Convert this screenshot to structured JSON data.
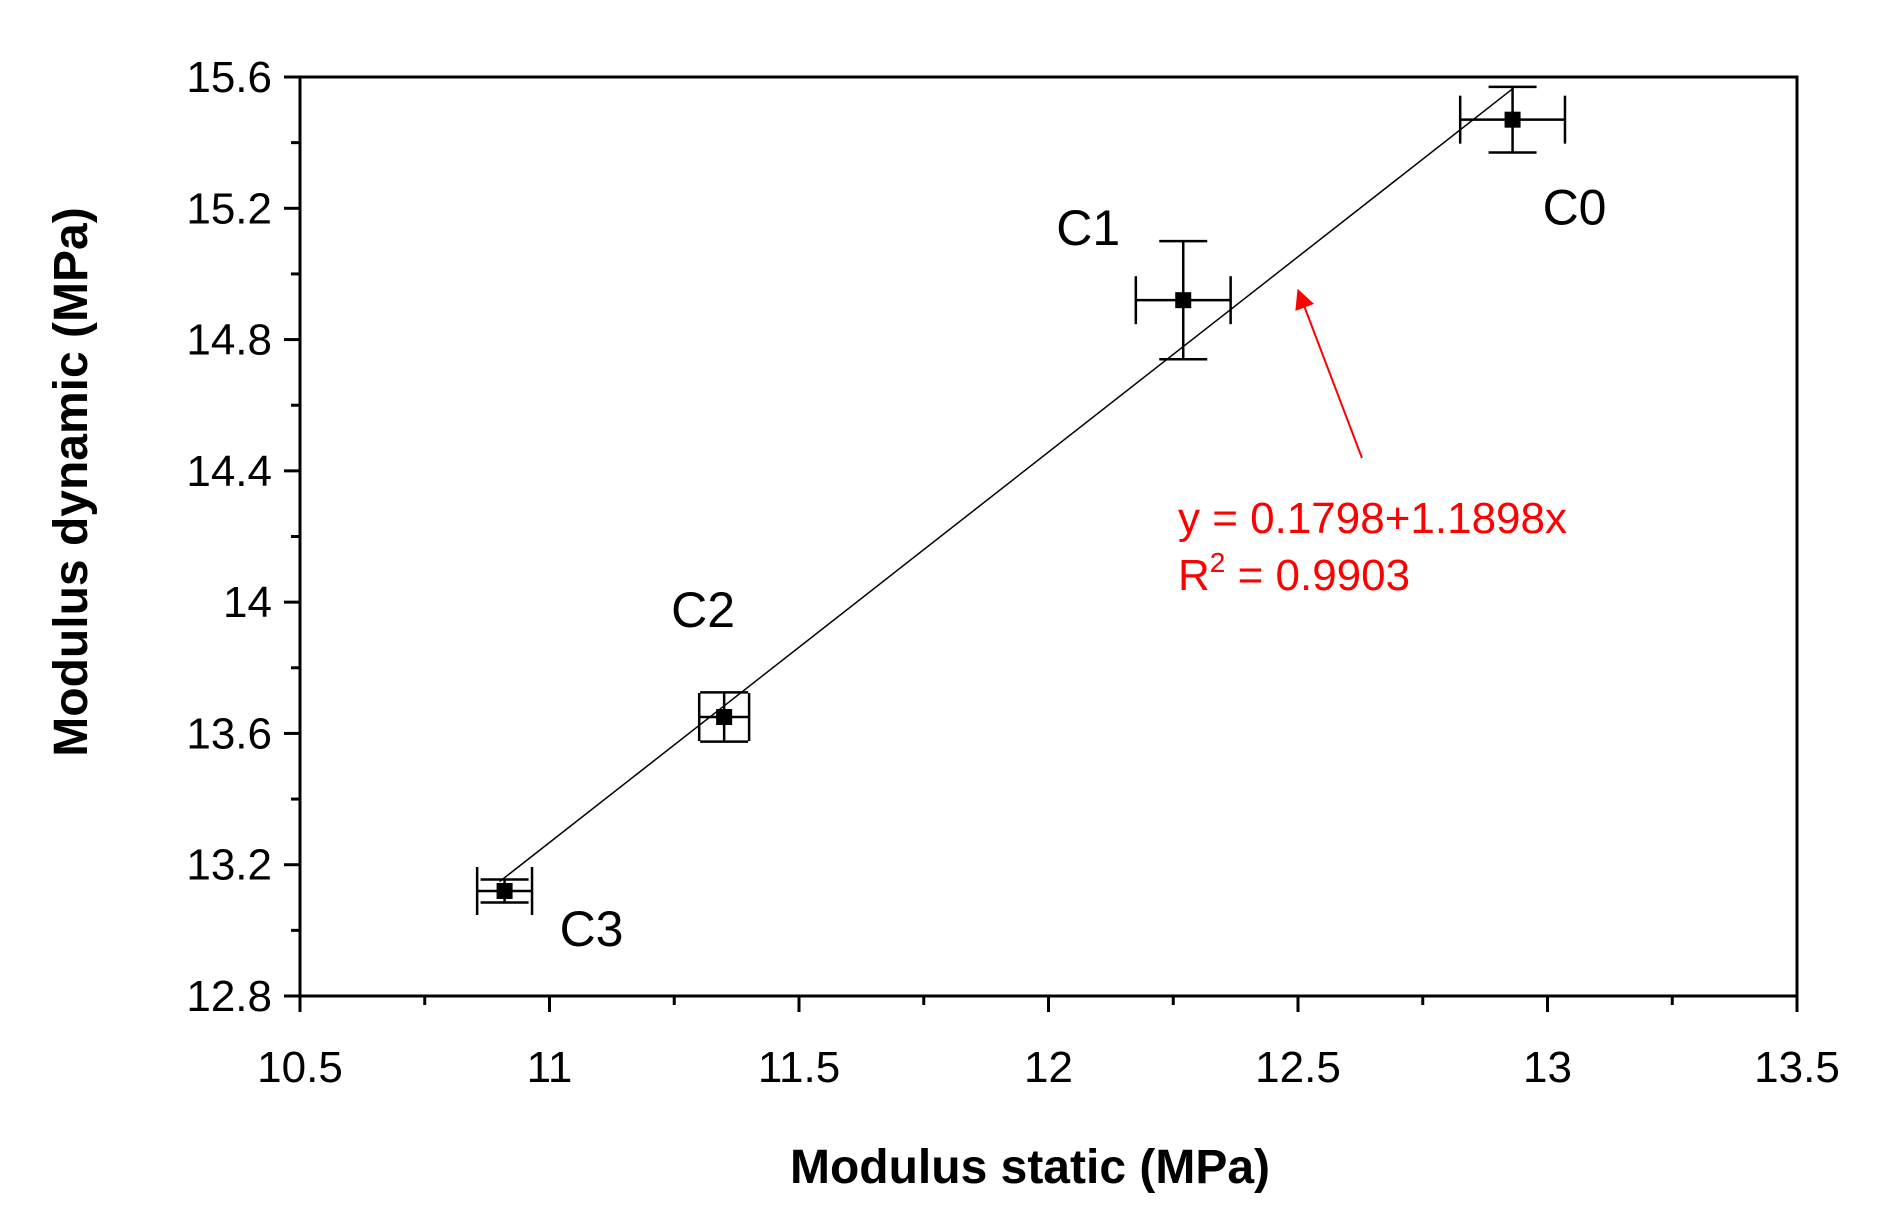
{
  "chart_data": {
    "type": "scatter",
    "xlabel": "Modulus static (MPa)",
    "ylabel": "Modulus dynamic (MPa)",
    "xlim": [
      10.5,
      13.5
    ],
    "ylim": [
      12.8,
      15.6
    ],
    "x_ticks": [
      "10.5",
      "11",
      "11.5",
      "12",
      "12.5",
      "13",
      "13.5"
    ],
    "x_tick_values": [
      10.5,
      11,
      11.5,
      12,
      12.5,
      13,
      13.5
    ],
    "y_ticks": [
      "12.8",
      "13.2",
      "13.6",
      "14",
      "14.4",
      "14.8",
      "15.2",
      "15.6"
    ],
    "y_tick_values": [
      12.8,
      13.2,
      13.6,
      14,
      14.4,
      14.8,
      15.2,
      15.6
    ],
    "grid": false,
    "points": [
      {
        "label": "C0",
        "x": 12.93,
        "y": 15.47,
        "xerr": 0.105,
        "yerr": 0.1
      },
      {
        "label": "C1",
        "x": 12.27,
        "y": 14.92,
        "xerr": 0.095,
        "yerr": 0.18
      },
      {
        "label": "C2",
        "x": 11.35,
        "y": 13.65,
        "xerr": 0.05,
        "yerr": 0.075
      },
      {
        "label": "C3",
        "x": 10.91,
        "y": 13.12,
        "xerr": 0.055,
        "yerr": 0.035
      }
    ],
    "fit_line": {
      "intercept": 0.1798,
      "slope": 1.1898,
      "x_range": [
        10.9,
        12.93
      ]
    },
    "annotation": {
      "equation": "y = 0.1798+1.1898x",
      "r2_prefix": "R",
      "r2_sup": "2",
      "r2_value": " = 0.9903",
      "color": "#ff0000",
      "arrow_target": {
        "x": 12.49,
        "y": 14.98
      }
    }
  }
}
